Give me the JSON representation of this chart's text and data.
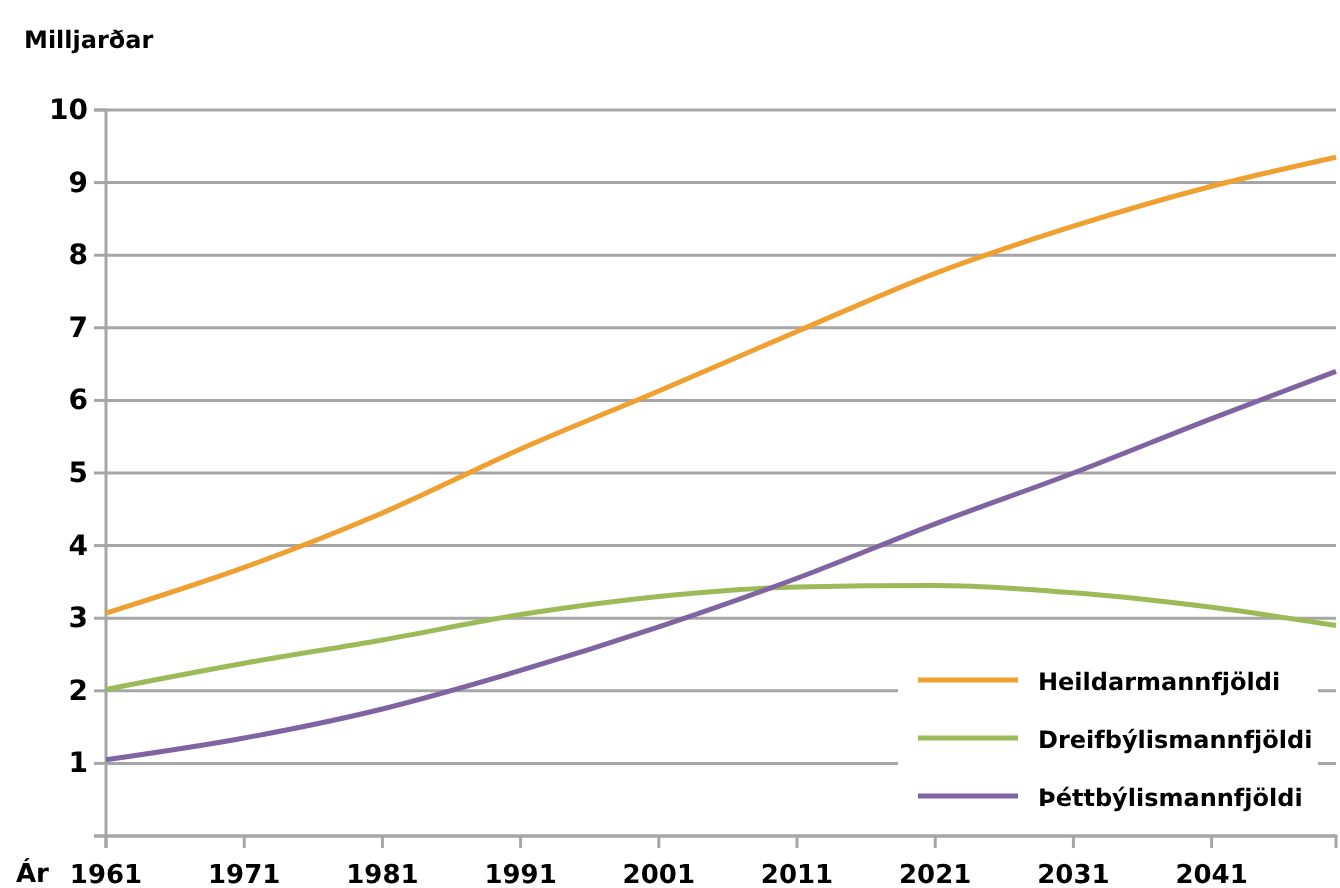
{
  "chart_data": {
    "type": "line",
    "ylabel": "Milljarðar",
    "xlabel": "Ár",
    "x": [
      1961,
      1971,
      1981,
      1991,
      2001,
      2011,
      2021,
      2031,
      2041,
      2050
    ],
    "xlim": [
      1961,
      2050
    ],
    "xticks": [
      1961,
      1971,
      1981,
      1991,
      2001,
      2011,
      2021,
      2031,
      2041
    ],
    "ylim": [
      0,
      10
    ],
    "yticks": [
      {
        "value": 0,
        "label": null
      },
      1,
      2,
      3,
      4,
      5,
      6,
      7,
      8,
      9,
      10
    ],
    "grid": "y",
    "legend": "bottom right",
    "marker": "none",
    "line_style": "solid",
    "series": [
      {
        "name": "Heildarmannfjöldi",
        "color": "#f0a030",
        "values": [
          3.07,
          3.7,
          4.45,
          5.33,
          6.13,
          6.95,
          7.75,
          8.4,
          8.95,
          9.35
        ]
      },
      {
        "name": "Dreifbýlismannfjöldi",
        "color": "#9bbb59",
        "values": [
          2.02,
          2.38,
          2.7,
          3.05,
          3.3,
          3.43,
          3.45,
          3.35,
          3.15,
          2.9
        ]
      },
      {
        "name": "Þéttbýlismannfjöldi",
        "color": "#8064a2",
        "values": [
          1.05,
          1.35,
          1.75,
          2.28,
          2.88,
          3.55,
          4.3,
          5.0,
          5.75,
          6.4
        ]
      }
    ]
  }
}
